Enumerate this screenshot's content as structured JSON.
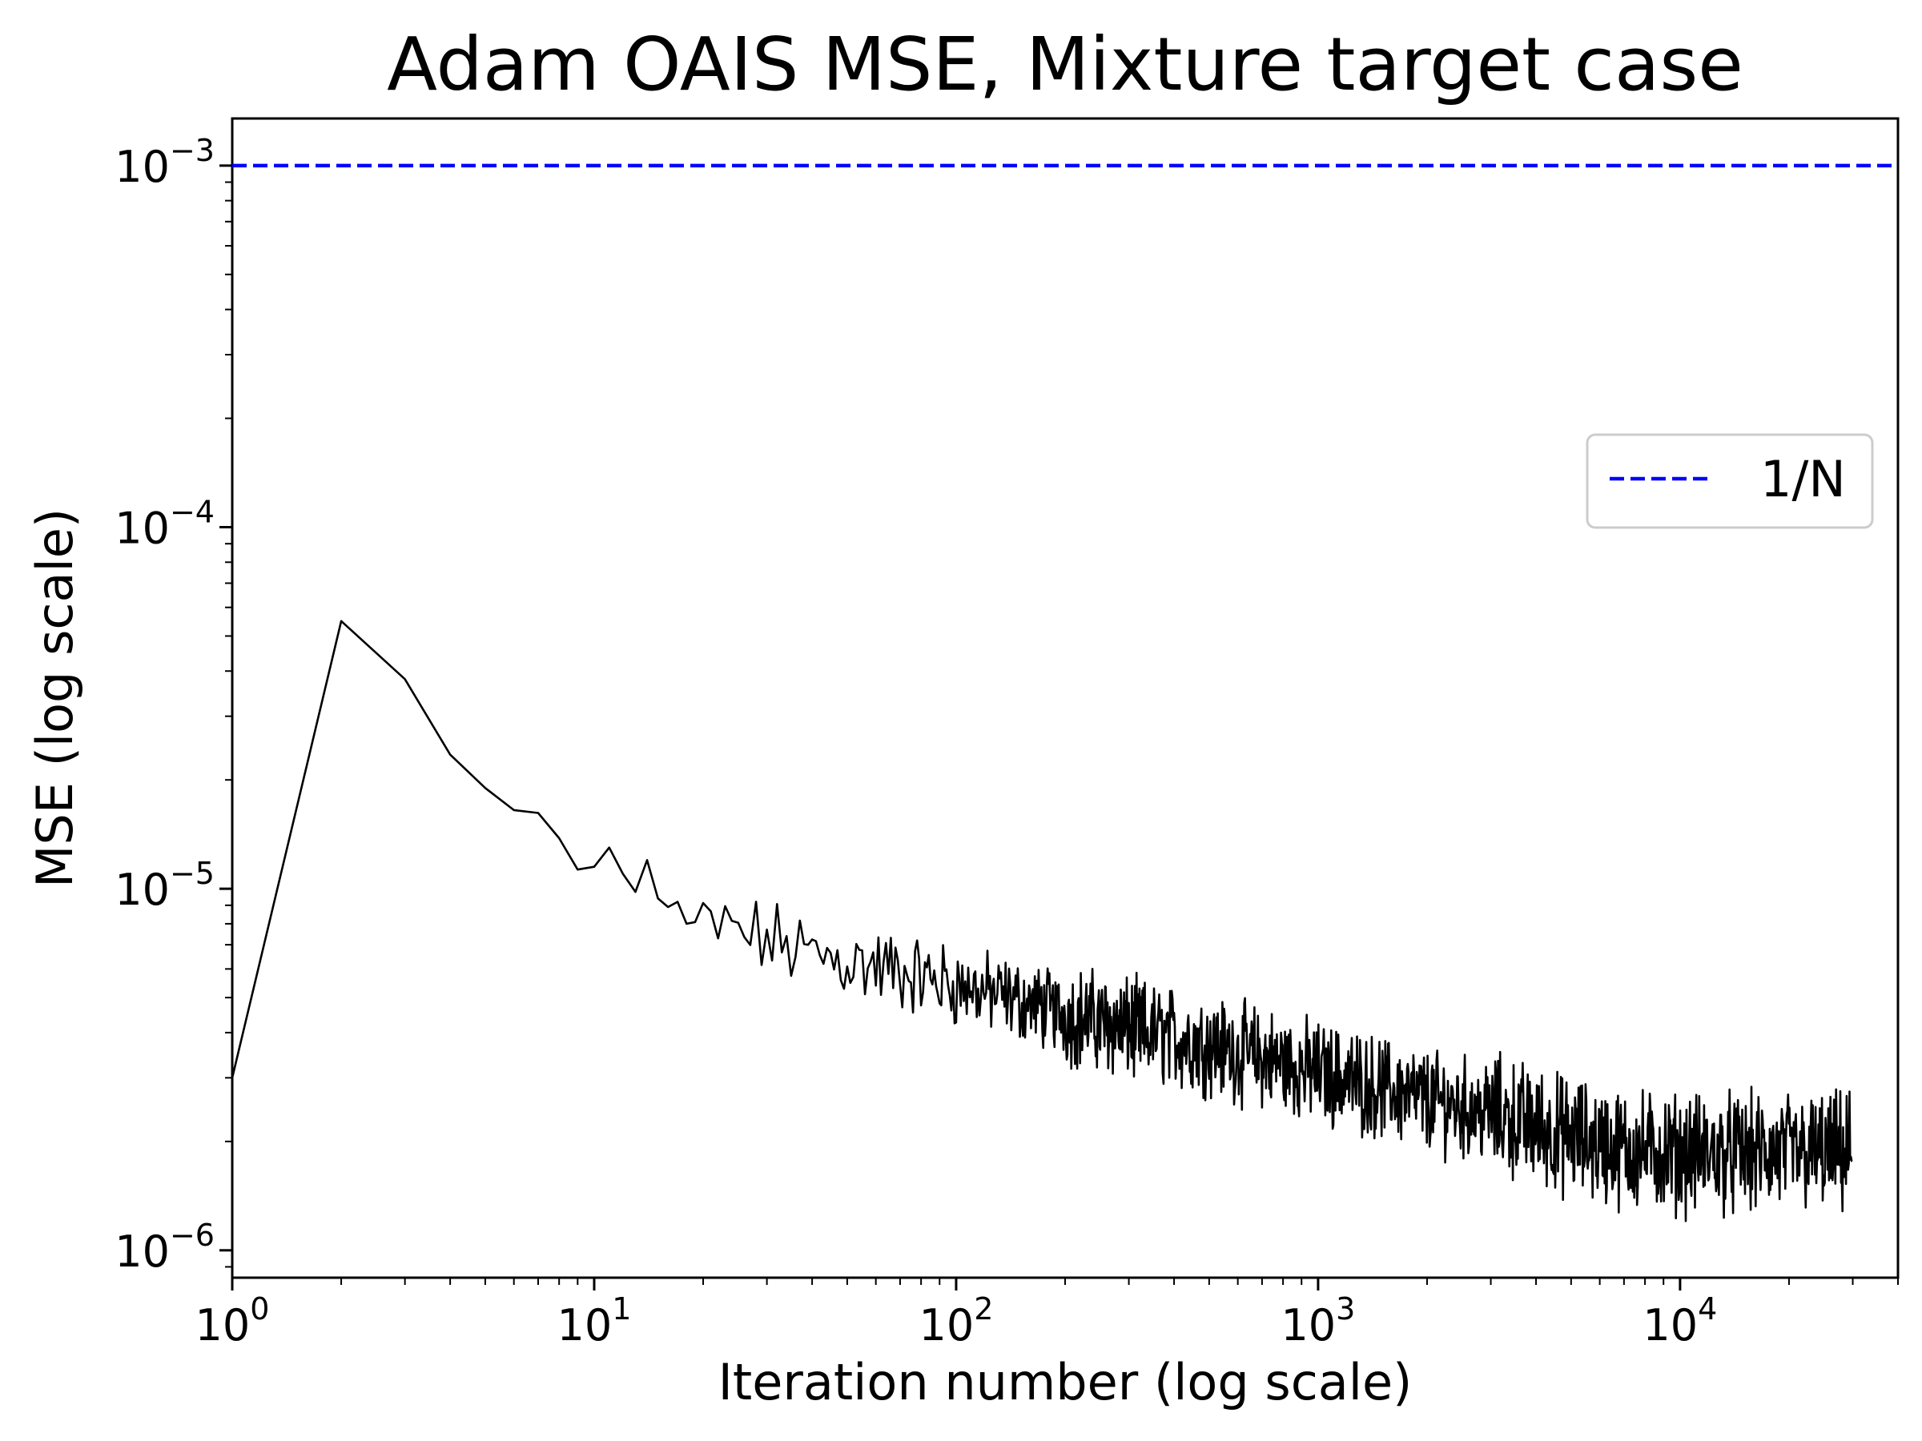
{
  "chart_data": {
    "type": "line",
    "title": "Adam OAIS MSE, Mixture target case",
    "xlabel": "Iteration number (log scale)",
    "ylabel": "MSE (log scale)",
    "xscale": "log",
    "yscale": "log",
    "xlim": [
      1,
      40000
    ],
    "ylim": [
      8.4e-07,
      0.00135
    ],
    "x_ticks": [
      {
        "base": "10",
        "exp": "0",
        "value": 1
      },
      {
        "base": "10",
        "exp": "1",
        "value": 10
      },
      {
        "base": "10",
        "exp": "2",
        "value": 100
      },
      {
        "base": "10",
        "exp": "3",
        "value": 1000
      },
      {
        "base": "10",
        "exp": "4",
        "value": 10000
      }
    ],
    "y_ticks": [
      {
        "base": "10",
        "exp": "−3",
        "value": 0.001
      },
      {
        "base": "10",
        "exp": "−4",
        "value": 0.0001
      },
      {
        "base": "10",
        "exp": "−5",
        "value": 1e-05
      },
      {
        "base": "10",
        "exp": "−6",
        "value": 1e-06
      }
    ],
    "grid": false,
    "legend": {
      "position": "center-right",
      "entries": [
        "1/N"
      ]
    },
    "series": [
      {
        "name": "MSE",
        "color": "#000000",
        "style": "solid",
        "x": [
          1,
          2,
          3,
          4,
          5,
          6,
          7,
          8,
          9,
          10,
          11,
          12,
          13,
          14,
          15,
          16,
          17,
          18,
          20,
          25,
          30,
          40,
          50,
          70,
          100,
          150,
          200,
          300,
          500,
          700,
          1000,
          1500,
          2000,
          3000,
          5000,
          7000,
          10000,
          15000,
          20000,
          30000
        ],
        "y": [
          3e-06,
          5.5e-05,
          3.8e-05,
          2.35e-05,
          1.9e-05,
          1.65e-05,
          1.62e-05,
          1.38e-05,
          1.13e-05,
          1.15e-05,
          1.3e-05,
          1.1e-05,
          9.8e-06,
          1.2e-05,
          9.4e-06,
          8.9e-06,
          9.2e-06,
          8e-06,
          7.8e-06,
          7.6e-06,
          7.2e-06,
          6.6e-06,
          6.3e-06,
          5.9e-06,
          5.4e-06,
          4.9e-06,
          4.5e-06,
          4.1e-06,
          3.7e-06,
          3.4e-06,
          3.1e-06,
          2.8e-06,
          2.6e-06,
          2.4e-06,
          2.05e-06,
          1.9e-06,
          1.85e-06,
          1.85e-06,
          1.85e-06,
          1.85e-06
        ]
      },
      {
        "name": "1/N",
        "color": "#0000ff",
        "style": "dashed",
        "y_constant": 0.001
      }
    ]
  }
}
